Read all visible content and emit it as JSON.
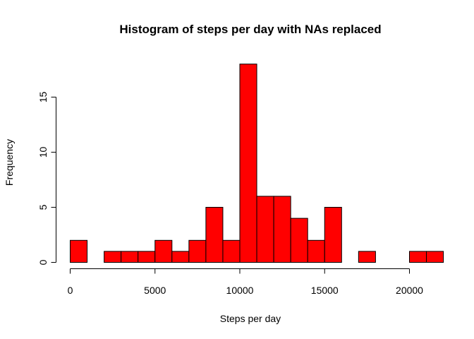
{
  "chart_data": {
    "type": "bar",
    "subtype": "histogram",
    "title": "Histogram of steps per day with NAs replaced",
    "xlabel": "Steps per day",
    "ylabel": "Frequency",
    "bin_width": 1000,
    "bin_start": 0,
    "frequencies": [
      2,
      0,
      1,
      1,
      1,
      2,
      1,
      2,
      5,
      2,
      18,
      6,
      6,
      4,
      2,
      5,
      0,
      1,
      0,
      0,
      1,
      1
    ],
    "xlim": [
      0,
      22000
    ],
    "ylim": [
      0,
      18
    ],
    "x_ticks": [
      0,
      5000,
      10000,
      15000,
      20000
    ],
    "y_ticks": [
      0,
      5,
      10,
      15
    ],
    "bar_color": "#ff0000",
    "bar_border_color": "#000000",
    "grid": false
  }
}
